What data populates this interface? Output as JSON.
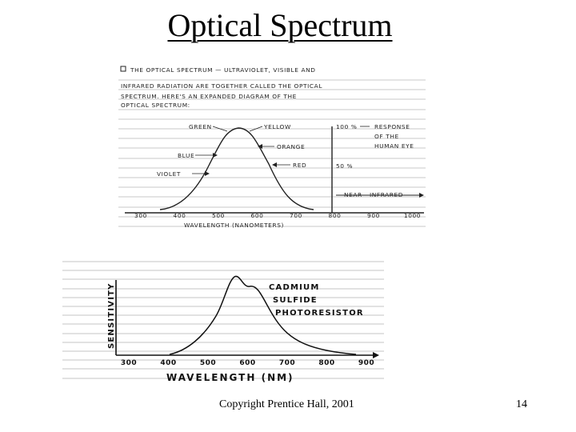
{
  "slide": {
    "title": "Optical Spectrum",
    "footer": "Copyright Prentice Hall, 2001",
    "page_number": "14"
  },
  "figure1": {
    "intro_lines": [
      "THE OPTICAL SPECTRUM — ULTRAVIOLET, VISIBLE AND",
      "INFRARED RADIATION ARE TOGETHER CALLED THE OPTICAL",
      "SPECTRUM. HERE'S AN EXPANDED DIAGRAM OF THE",
      "OPTICAL SPECTRUM:"
    ],
    "labels": {
      "green": "GREEN",
      "yellow": "YELLOW",
      "orange": "ORANGE",
      "blue": "BLUE",
      "red": "RED",
      "violet": "VIOLET",
      "pct100": "100 %",
      "pct50": "50 %",
      "response1": "RESPONSE",
      "response2": "OF THE",
      "response3": "HUMAN EYE",
      "near_ir": "NEAR - INFRARED"
    },
    "ticks": [
      "300",
      "400",
      "500",
      "600",
      "700",
      "800",
      "900",
      "1000"
    ],
    "xlabel": "WAVELENGTH (NANOMETERS)"
  },
  "figure2": {
    "ylabel": "SENSITIVITY",
    "curve_label": [
      "CADMIUM",
      "SULFIDE",
      "PHOTORESISTOR"
    ],
    "ticks": [
      "300",
      "400",
      "500",
      "600",
      "700",
      "800",
      "900"
    ],
    "xlabel": "WAVELENGTH (NM)"
  }
}
